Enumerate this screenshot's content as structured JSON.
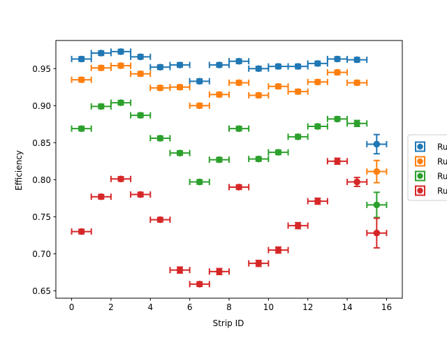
{
  "chart_data": {
    "type": "scatter",
    "title": "",
    "xlabel": "Strip ID",
    "ylabel": "Efficiency",
    "xlim": [
      -0.8,
      16.8
    ],
    "ylim": [
      0.64,
      0.988
    ],
    "x_ticks": [
      0,
      2,
      4,
      6,
      8,
      10,
      12,
      14,
      16
    ],
    "y_ticks": [
      0.65,
      0.7,
      0.75,
      0.8,
      0.85,
      0.9,
      0.95
    ],
    "x_tick_labels": [
      "0",
      "2",
      "4",
      "6",
      "8",
      "10",
      "12",
      "14",
      "16"
    ],
    "y_tick_labels": [
      "0.65",
      "0.70",
      "0.75",
      "0.80",
      "0.85",
      "0.90",
      "0.95"
    ],
    "grid": false,
    "legend_position": "right, partially clipped",
    "x_error": 0.5,
    "series": [
      {
        "name": "Ru",
        "color": "#1f77b4",
        "x": [
          0.5,
          1.5,
          2.5,
          3.5,
          4.5,
          5.5,
          6.5,
          7.5,
          8.5,
          9.5,
          10.5,
          11.5,
          12.5,
          13.5,
          14.5,
          15.5
        ],
        "y": [
          0.963,
          0.971,
          0.973,
          0.966,
          0.952,
          0.955,
          0.933,
          0.955,
          0.96,
          0.95,
          0.953,
          0.953,
          0.957,
          0.963,
          0.962,
          0.848
        ],
        "y_err": [
          0.003,
          0.003,
          0.003,
          0.003,
          0.003,
          0.003,
          0.003,
          0.003,
          0.003,
          0.003,
          0.003,
          0.003,
          0.003,
          0.003,
          0.003,
          0.013
        ]
      },
      {
        "name": "Ru",
        "color": "#ff7f0e",
        "x": [
          0.5,
          1.5,
          2.5,
          3.5,
          4.5,
          5.5,
          6.5,
          7.5,
          8.5,
          9.5,
          10.5,
          11.5,
          12.5,
          13.5,
          14.5,
          15.5
        ],
        "y": [
          0.935,
          0.951,
          0.954,
          0.943,
          0.924,
          0.925,
          0.9,
          0.915,
          0.931,
          0.914,
          0.926,
          0.919,
          0.932,
          0.945,
          0.931,
          0.811
        ],
        "y_err": [
          0.003,
          0.003,
          0.003,
          0.003,
          0.003,
          0.003,
          0.003,
          0.003,
          0.003,
          0.003,
          0.003,
          0.003,
          0.003,
          0.003,
          0.003,
          0.015
        ]
      },
      {
        "name": "Ru",
        "color": "#2ca02c",
        "x": [
          0.5,
          1.5,
          2.5,
          3.5,
          4.5,
          5.5,
          6.5,
          7.5,
          8.5,
          9.5,
          10.5,
          11.5,
          12.5,
          13.5,
          14.5,
          15.5
        ],
        "y": [
          0.869,
          0.899,
          0.904,
          0.887,
          0.856,
          0.836,
          0.797,
          0.827,
          0.869,
          0.828,
          0.837,
          0.858,
          0.872,
          0.882,
          0.876,
          0.766
        ],
        "y_err": [
          0.003,
          0.003,
          0.003,
          0.003,
          0.003,
          0.003,
          0.003,
          0.003,
          0.003,
          0.003,
          0.003,
          0.003,
          0.003,
          0.003,
          0.004,
          0.017
        ]
      },
      {
        "name": "Ru",
        "color": "#d62728",
        "x": [
          0.5,
          1.5,
          2.5,
          3.5,
          4.5,
          5.5,
          6.5,
          7.5,
          8.5,
          9.5,
          10.5,
          11.5,
          12.5,
          13.5,
          14.5,
          15.5
        ],
        "y": [
          0.73,
          0.777,
          0.801,
          0.78,
          0.746,
          0.678,
          0.659,
          0.676,
          0.79,
          0.687,
          0.705,
          0.738,
          0.771,
          0.825,
          0.797,
          0.728
        ],
        "y_err": [
          0.003,
          0.003,
          0.003,
          0.003,
          0.003,
          0.004,
          0.003,
          0.004,
          0.003,
          0.004,
          0.004,
          0.004,
          0.004,
          0.004,
          0.006,
          0.02
        ]
      }
    ]
  }
}
